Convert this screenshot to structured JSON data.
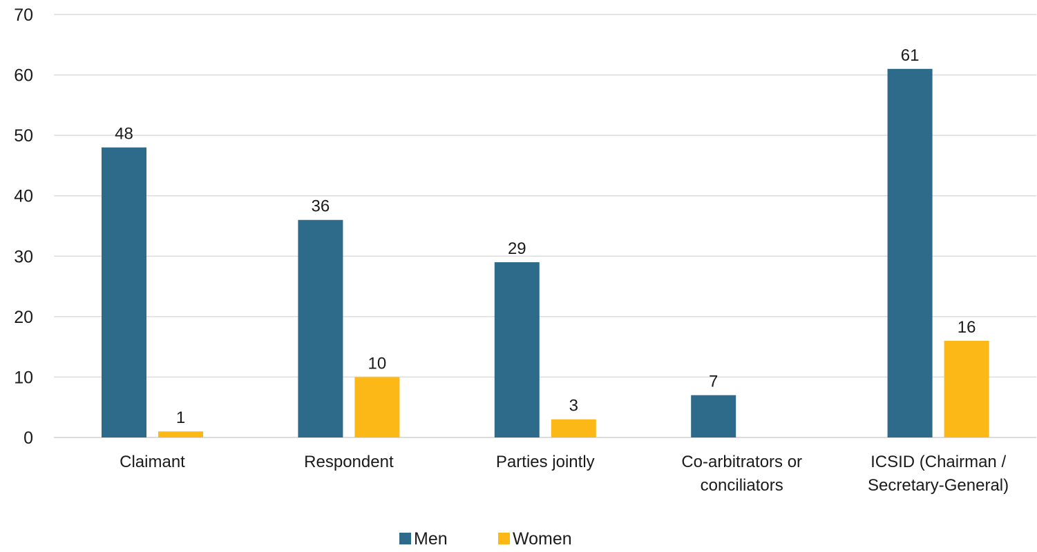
{
  "chart_data": {
    "type": "bar",
    "categories": [
      [
        "Claimant"
      ],
      [
        "Respondent"
      ],
      [
        "Parties jointly"
      ],
      [
        "Co-arbitrators or",
        "conciliators"
      ],
      [
        "ICSID (Chairman /",
        "Secretary-General)"
      ]
    ],
    "series": [
      {
        "name": "Men",
        "values": [
          48,
          36,
          29,
          7,
          61
        ],
        "color": "#2E6A8A"
      },
      {
        "name": "Women",
        "values": [
          1,
          10,
          3,
          null,
          16
        ],
        "color": "#FBB817"
      }
    ],
    "data_labels": {
      "Men": [
        "48",
        "36",
        "29",
        "7",
        "61"
      ],
      "Women": [
        "1",
        "10",
        "3",
        "",
        "16"
      ]
    },
    "y_ticks": [
      "0",
      "10",
      "20",
      "30",
      "40",
      "50",
      "60",
      "70"
    ],
    "ylim": [
      0,
      70
    ],
    "grid": true,
    "legend_position": "bottom-center",
    "title": "",
    "xlabel": "",
    "ylabel": ""
  }
}
